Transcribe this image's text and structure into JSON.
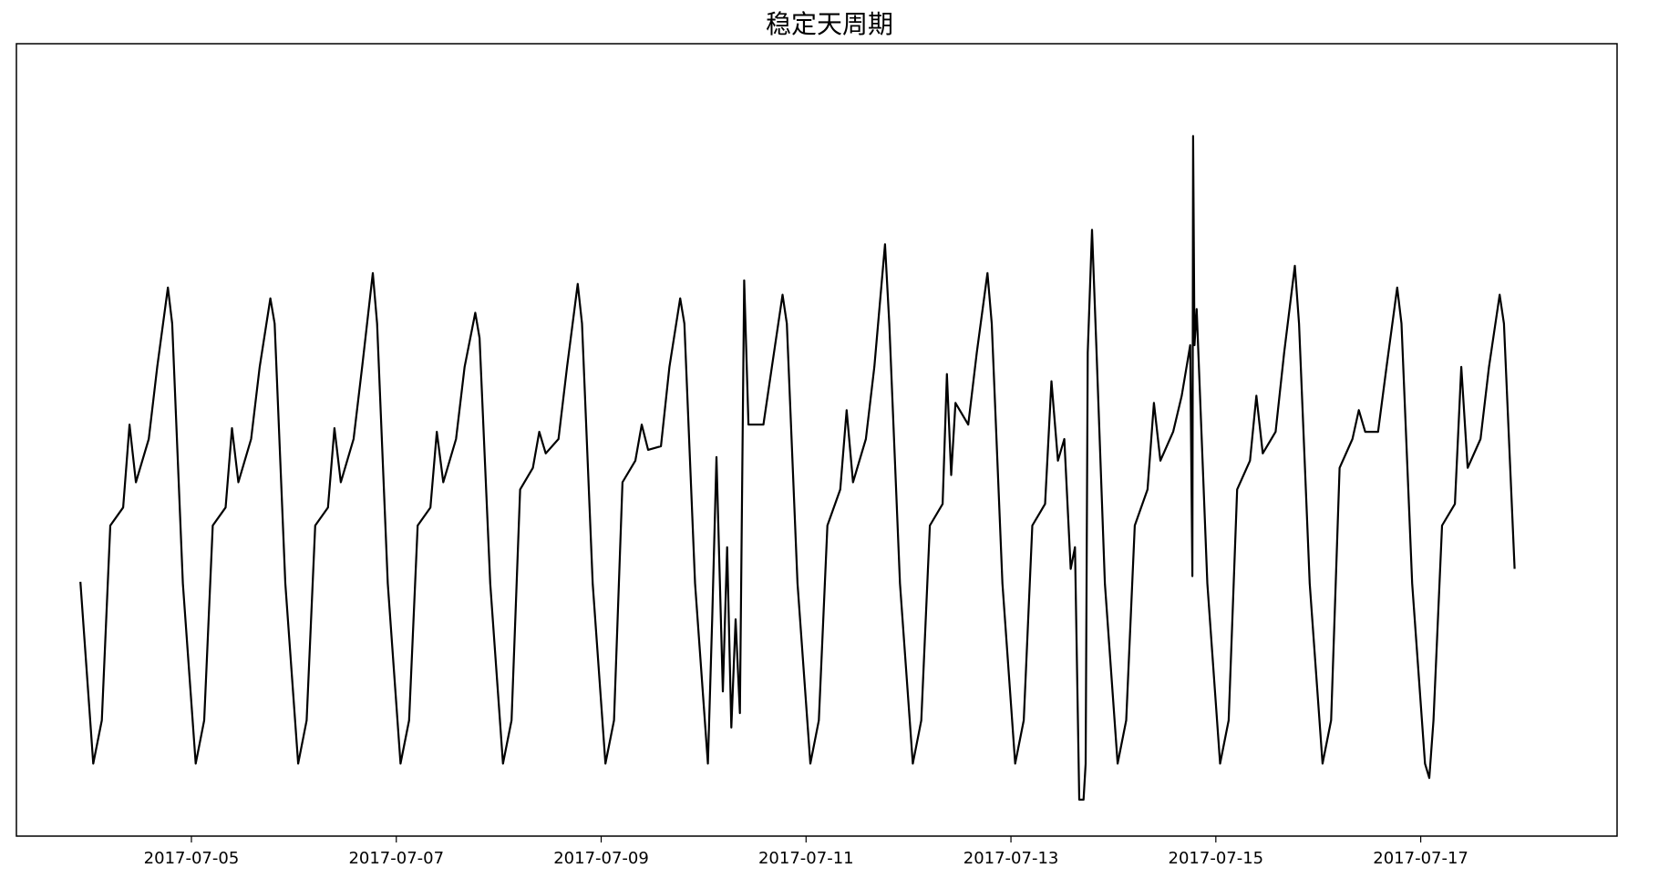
{
  "chart_data": {
    "type": "line",
    "title": "稳定天周期",
    "xlabel": "",
    "ylabel": "",
    "x_axis": {
      "kind": "date",
      "range": [
        "2017-07-03T07:00",
        "2017-07-18T22:00"
      ],
      "ticks": [
        "2017-07-05",
        "2017-07-07",
        "2017-07-09",
        "2017-07-11",
        "2017-07-13",
        "2017-07-15",
        "2017-07-17"
      ]
    },
    "y_axis": {
      "tick_labels_shown": false,
      "range": [
        0,
        100
      ]
    },
    "grid": false,
    "legend": "none",
    "series": [
      {
        "color": "#000000",
        "points": [
          [
            "2017-07-03T22:00",
            30.2
          ],
          [
            "2017-07-04T01:00",
            5.0
          ],
          [
            "2017-07-04T03:00",
            11.0
          ],
          [
            "2017-07-04T05:00",
            38.0
          ],
          [
            "2017-07-04T08:00",
            40.5
          ],
          [
            "2017-07-04T09:30",
            52.0
          ],
          [
            "2017-07-04T11:00",
            44.0
          ],
          [
            "2017-07-04T14:00",
            50.0
          ],
          [
            "2017-07-04T16:00",
            60.0
          ],
          [
            "2017-07-04T18:30",
            71.0
          ],
          [
            "2017-07-04T19:30",
            66.0
          ],
          [
            "2017-07-04T22:00",
            30.0
          ],
          [
            "2017-07-05T01:00",
            5.0
          ],
          [
            "2017-07-05T03:00",
            11.0
          ],
          [
            "2017-07-05T05:00",
            38.0
          ],
          [
            "2017-07-05T08:00",
            40.5
          ],
          [
            "2017-07-05T09:30",
            51.5
          ],
          [
            "2017-07-05T11:00",
            44.0
          ],
          [
            "2017-07-05T14:00",
            50.0
          ],
          [
            "2017-07-05T16:00",
            60.0
          ],
          [
            "2017-07-05T18:30",
            69.5
          ],
          [
            "2017-07-05T19:30",
            66.0
          ],
          [
            "2017-07-05T22:00",
            30.0
          ],
          [
            "2017-07-06T01:00",
            5.0
          ],
          [
            "2017-07-06T03:00",
            11.0
          ],
          [
            "2017-07-06T05:00",
            38.0
          ],
          [
            "2017-07-06T08:00",
            40.5
          ],
          [
            "2017-07-06T09:30",
            51.5
          ],
          [
            "2017-07-06T11:00",
            44.0
          ],
          [
            "2017-07-06T14:00",
            50.0
          ],
          [
            "2017-07-06T16:00",
            60.0
          ],
          [
            "2017-07-06T18:30",
            73.0
          ],
          [
            "2017-07-06T19:30",
            66.0
          ],
          [
            "2017-07-06T22:00",
            30.0
          ],
          [
            "2017-07-07T01:00",
            5.0
          ],
          [
            "2017-07-07T03:00",
            11.0
          ],
          [
            "2017-07-07T05:00",
            38.0
          ],
          [
            "2017-07-07T08:00",
            40.5
          ],
          [
            "2017-07-07T09:30",
            51.0
          ],
          [
            "2017-07-07T11:00",
            44.0
          ],
          [
            "2017-07-07T14:00",
            50.0
          ],
          [
            "2017-07-07T16:00",
            60.0
          ],
          [
            "2017-07-07T18:30",
            67.5
          ],
          [
            "2017-07-07T19:30",
            64.0
          ],
          [
            "2017-07-07T22:00",
            30.0
          ],
          [
            "2017-07-08T01:00",
            5.0
          ],
          [
            "2017-07-08T03:00",
            11.0
          ],
          [
            "2017-07-08T05:00",
            43.0
          ],
          [
            "2017-07-08T08:00",
            46.0
          ],
          [
            "2017-07-08T09:30",
            51.0
          ],
          [
            "2017-07-08T11:00",
            48.0
          ],
          [
            "2017-07-08T14:00",
            50.0
          ],
          [
            "2017-07-08T16:00",
            60.0
          ],
          [
            "2017-07-08T18:30",
            71.5
          ],
          [
            "2017-07-08T19:30",
            66.0
          ],
          [
            "2017-07-08T22:00",
            30.0
          ],
          [
            "2017-07-09T01:00",
            5.0
          ],
          [
            "2017-07-09T03:00",
            11.0
          ],
          [
            "2017-07-09T05:00",
            44.0
          ],
          [
            "2017-07-09T08:00",
            47.0
          ],
          [
            "2017-07-09T09:30",
            52.0
          ],
          [
            "2017-07-09T11:00",
            48.5
          ],
          [
            "2017-07-09T14:00",
            49.0
          ],
          [
            "2017-07-09T16:00",
            60.0
          ],
          [
            "2017-07-09T18:30",
            69.5
          ],
          [
            "2017-07-09T19:30",
            66.0
          ],
          [
            "2017-07-09T22:00",
            30.0
          ],
          [
            "2017-07-10T01:00",
            5.0
          ],
          [
            "2017-07-10T02:00",
            25.0
          ],
          [
            "2017-07-10T03:00",
            47.5
          ],
          [
            "2017-07-10T04:30",
            15.0
          ],
          [
            "2017-07-10T05:30",
            35.0
          ],
          [
            "2017-07-10T06:30",
            10.0
          ],
          [
            "2017-07-10T07:30",
            25.0
          ],
          [
            "2017-07-10T08:30",
            12.0
          ],
          [
            "2017-07-10T09:30",
            72.0
          ],
          [
            "2017-07-10T10:30",
            52.0
          ],
          [
            "2017-07-10T14:00",
            52.0
          ],
          [
            "2017-07-10T16:00",
            60.0
          ],
          [
            "2017-07-10T18:30",
            70.0
          ],
          [
            "2017-07-10T19:30",
            66.0
          ],
          [
            "2017-07-10T22:00",
            30.0
          ],
          [
            "2017-07-11T01:00",
            5.0
          ],
          [
            "2017-07-11T03:00",
            11.0
          ],
          [
            "2017-07-11T05:00",
            38.0
          ],
          [
            "2017-07-11T08:00",
            43.0
          ],
          [
            "2017-07-11T09:30",
            54.0
          ],
          [
            "2017-07-11T11:00",
            44.0
          ],
          [
            "2017-07-11T14:00",
            50.0
          ],
          [
            "2017-07-11T16:00",
            60.0
          ],
          [
            "2017-07-11T18:30",
            77.0
          ],
          [
            "2017-07-11T19:30",
            66.0
          ],
          [
            "2017-07-11T22:00",
            30.0
          ],
          [
            "2017-07-12T01:00",
            5.0
          ],
          [
            "2017-07-12T03:00",
            11.0
          ],
          [
            "2017-07-12T05:00",
            38.0
          ],
          [
            "2017-07-12T08:00",
            41.0
          ],
          [
            "2017-07-12T09:00",
            59.0
          ],
          [
            "2017-07-12T10:00",
            45.0
          ],
          [
            "2017-07-12T11:00",
            55.0
          ],
          [
            "2017-07-12T14:00",
            52.0
          ],
          [
            "2017-07-12T16:00",
            62.0
          ],
          [
            "2017-07-12T18:30",
            73.0
          ],
          [
            "2017-07-12T19:30",
            66.0
          ],
          [
            "2017-07-12T22:00",
            30.0
          ],
          [
            "2017-07-13T01:00",
            5.0
          ],
          [
            "2017-07-13T03:00",
            11.0
          ],
          [
            "2017-07-13T05:00",
            38.0
          ],
          [
            "2017-07-13T08:00",
            41.0
          ],
          [
            "2017-07-13T09:30",
            58.0
          ],
          [
            "2017-07-13T11:00",
            47.0
          ],
          [
            "2017-07-13T12:30",
            50.0
          ],
          [
            "2017-07-13T14:00",
            32.0
          ],
          [
            "2017-07-13T15:00",
            35.0
          ],
          [
            "2017-07-13T16:00",
            0.0
          ],
          [
            "2017-07-13T17:00",
            0.0
          ],
          [
            "2017-07-13T17:30",
            5.0
          ],
          [
            "2017-07-13T18:00",
            62.0
          ],
          [
            "2017-07-13T19:00",
            79.0
          ],
          [
            "2017-07-13T20:00",
            63.0
          ],
          [
            "2017-07-13T22:00",
            30.0
          ],
          [
            "2017-07-14T01:00",
            5.0
          ],
          [
            "2017-07-14T03:00",
            11.0
          ],
          [
            "2017-07-14T05:00",
            38.0
          ],
          [
            "2017-07-14T08:00",
            43.0
          ],
          [
            "2017-07-14T09:30",
            55.0
          ],
          [
            "2017-07-14T11:00",
            47.0
          ],
          [
            "2017-07-14T14:00",
            51.0
          ],
          [
            "2017-07-14T16:00",
            56.0
          ],
          [
            "2017-07-14T18:00",
            63.0
          ],
          [
            "2017-07-14T18:30",
            31.0
          ],
          [
            "2017-07-14T18:40",
            92.0
          ],
          [
            "2017-07-14T19:00",
            63.0
          ],
          [
            "2017-07-14T19:30",
            68.0
          ],
          [
            "2017-07-14T22:00",
            30.0
          ],
          [
            "2017-07-15T01:00",
            5.0
          ],
          [
            "2017-07-15T03:00",
            11.0
          ],
          [
            "2017-07-15T05:00",
            43.0
          ],
          [
            "2017-07-15T08:00",
            47.0
          ],
          [
            "2017-07-15T09:30",
            56.0
          ],
          [
            "2017-07-15T11:00",
            48.0
          ],
          [
            "2017-07-15T14:00",
            51.0
          ],
          [
            "2017-07-15T16:00",
            62.0
          ],
          [
            "2017-07-15T18:30",
            74.0
          ],
          [
            "2017-07-15T19:30",
            66.0
          ],
          [
            "2017-07-15T22:00",
            30.0
          ],
          [
            "2017-07-16T01:00",
            5.0
          ],
          [
            "2017-07-16T03:00",
            11.0
          ],
          [
            "2017-07-16T05:00",
            46.0
          ],
          [
            "2017-07-16T08:00",
            50.0
          ],
          [
            "2017-07-16T09:30",
            54.0
          ],
          [
            "2017-07-16T11:00",
            51.0
          ],
          [
            "2017-07-16T14:00",
            51.0
          ],
          [
            "2017-07-16T16:00",
            60.0
          ],
          [
            "2017-07-16T18:30",
            71.0
          ],
          [
            "2017-07-16T19:30",
            66.0
          ],
          [
            "2017-07-16T22:00",
            30.0
          ],
          [
            "2017-07-17T01:00",
            5.0
          ],
          [
            "2017-07-17T02:00",
            3.0
          ],
          [
            "2017-07-17T03:00",
            11.0
          ],
          [
            "2017-07-17T05:00",
            38.0
          ],
          [
            "2017-07-17T08:00",
            41.0
          ],
          [
            "2017-07-17T09:30",
            60.0
          ],
          [
            "2017-07-17T11:00",
            46.0
          ],
          [
            "2017-07-17T14:00",
            50.0
          ],
          [
            "2017-07-17T16:00",
            60.0
          ],
          [
            "2017-07-17T18:30",
            70.0
          ],
          [
            "2017-07-17T19:30",
            66.0
          ],
          [
            "2017-07-17T22:00",
            32.0
          ]
        ]
      }
    ]
  }
}
